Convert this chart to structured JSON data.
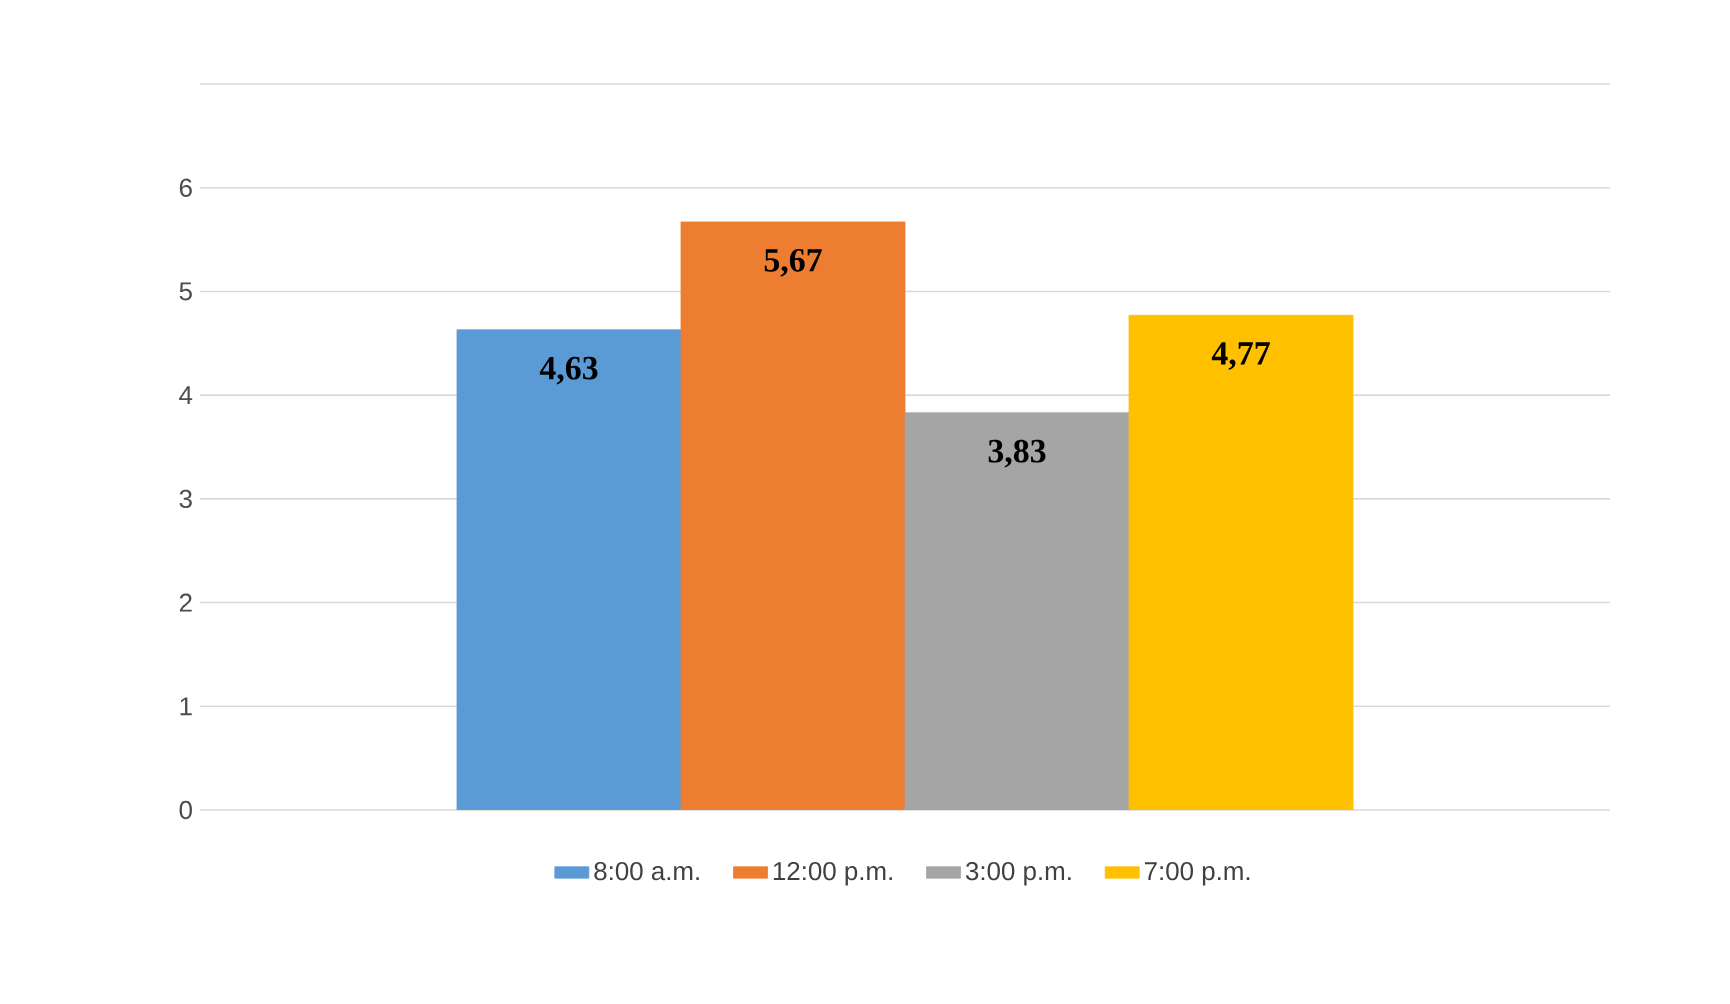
{
  "chart_data": {
    "type": "bar",
    "categories": [
      null
    ],
    "series": [
      {
        "name": "8:00 a.m.",
        "color": "#5b9bd5",
        "values": [
          4.63
        ],
        "value_labels": [
          "4,63"
        ]
      },
      {
        "name": "12:00 p.m.",
        "color": "#ed7d31",
        "values": [
          5.67
        ],
        "value_labels": [
          "5,67"
        ]
      },
      {
        "name": "3:00 p.m.",
        "color": "#a5a5a5",
        "values": [
          3.83
        ],
        "value_labels": [
          "3,83"
        ]
      },
      {
        "name": "7:00 p.m.",
        "color": "#ffc000",
        "values": [
          4.77
        ],
        "value_labels": [
          "4,77"
        ]
      }
    ],
    "ylim": [
      0,
      7
    ],
    "yticks": [
      0,
      1,
      2,
      3,
      4,
      5,
      6,
      {
        "value": 7,
        "label": null
      }
    ],
    "grid": "y",
    "legend": "bottom"
  }
}
